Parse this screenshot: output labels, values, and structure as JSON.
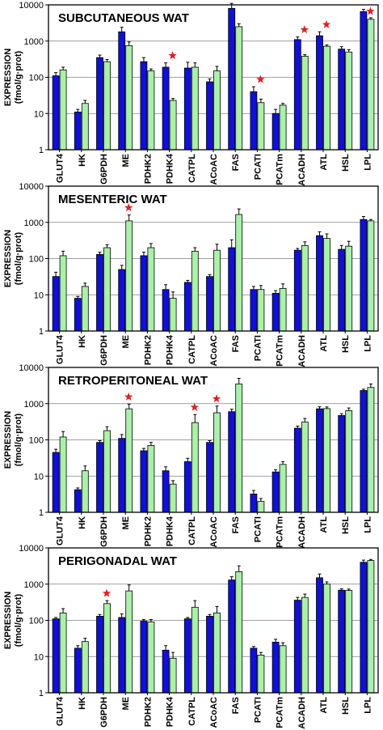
{
  "colors": {
    "series_a": "#1010d8",
    "series_b": "#aaf0aa",
    "star": "#e02020",
    "frame": "#000000",
    "grid": "#808080"
  },
  "y_axis": {
    "label_line1": "EXPRESSION",
    "label_line2": "(fmol/g·prot)",
    "tick_labels": [
      "1",
      "10",
      "100",
      "1000",
      "10000"
    ]
  },
  "chart_data": [
    {
      "type": "bar",
      "title": "SUBCUTANEOUS WAT",
      "yscale": "log",
      "ylim": [
        1,
        10000
      ],
      "grid": true,
      "categories": [
        "GLUT4",
        "HK",
        "G6PDH",
        "ME",
        "PDHK2",
        "PDHK4",
        "CATPL",
        "ACoAC",
        "FAS",
        "PCATI",
        "PCATm",
        "ACADH",
        "ATL",
        "HSL",
        "LPL"
      ],
      "series": [
        {
          "values": [
            110,
            11,
            350,
            1800,
            270,
            190,
            180,
            75,
            8000,
            40,
            10,
            1100,
            1400,
            600,
            6500
          ],
          "errors": [
            25,
            2,
            60,
            600,
            80,
            60,
            80,
            15,
            3000,
            15,
            3,
            200,
            400,
            100,
            1000
          ]
        },
        {
          "values": [
            160,
            19,
            270,
            750,
            150,
            23,
            190,
            150,
            2500,
            20,
            17,
            380,
            720,
            500,
            4000
          ],
          "errors": [
            30,
            4,
            40,
            200,
            20,
            3,
            60,
            50,
            500,
            5,
            2,
            40,
            60,
            80,
            400
          ]
        }
      ],
      "significant": [
        "PDHK4",
        "PCATI",
        "ACADH",
        "ATL",
        "LPL"
      ]
    },
    {
      "type": "bar",
      "title": "MESENTERIC WAT",
      "yscale": "log",
      "ylim": [
        1,
        10000
      ],
      "grid": true,
      "categories": [
        "GLUT4",
        "HK",
        "G6PDH",
        "ME",
        "PDHK2",
        "PDHK4",
        "CATPL",
        "ACoAC",
        "FAS",
        "PCATI",
        "PCATm",
        "ACADH",
        "ATL",
        "HSL",
        "LPL"
      ],
      "series": [
        {
          "values": [
            32,
            8,
            130,
            50,
            120,
            14,
            22,
            32,
            200,
            14,
            11,
            170,
            430,
            180,
            1200
          ],
          "errors": [
            10,
            1,
            20,
            15,
            30,
            5,
            3,
            4,
            130,
            3,
            2,
            20,
            120,
            50,
            250
          ]
        },
        {
          "values": [
            120,
            17,
            200,
            1100,
            200,
            8,
            160,
            170,
            1650,
            14,
            15,
            230,
            360,
            220,
            1100
          ],
          "errors": [
            40,
            4,
            40,
            500,
            60,
            4,
            40,
            80,
            700,
            4,
            5,
            60,
            120,
            80,
            100
          ]
        }
      ],
      "significant": [
        "ME"
      ]
    },
    {
      "type": "bar",
      "title": "RETROPERITONEAL WAT",
      "yscale": "log",
      "ylim": [
        1,
        10000
      ],
      "grid": true,
      "categories": [
        "GLUT4",
        "HK",
        "G6PDH",
        "ME",
        "PDHK2",
        "PDHK4",
        "CATPL",
        "ACoAC",
        "FAS",
        "PCATI",
        "PCATm",
        "ACADH",
        "ATL",
        "HSL",
        "LPL"
      ],
      "series": [
        {
          "values": [
            45,
            4.2,
            85,
            110,
            50,
            14,
            25,
            85,
            600,
            3.2,
            13,
            210,
            720,
            470,
            2300
          ],
          "errors": [
            10,
            0.5,
            10,
            30,
            8,
            4,
            6,
            10,
            100,
            0.8,
            2,
            30,
            100,
            60,
            200
          ]
        },
        {
          "values": [
            120,
            14,
            180,
            720,
            70,
            6,
            300,
            560,
            3500,
            2,
            21,
            310,
            730,
            640,
            2800
          ],
          "errors": [
            50,
            5,
            50,
            250,
            15,
            1.5,
            200,
            300,
            1500,
            0.4,
            4,
            80,
            80,
            120,
            700
          ]
        }
      ],
      "significant": [
        "ME",
        "CATPL",
        "ACoAC"
      ]
    },
    {
      "type": "bar",
      "title": "PERIGONADAL WAT",
      "yscale": "log",
      "ylim": [
        1,
        10000
      ],
      "grid": true,
      "categories": [
        "GLUT4",
        "HK",
        "G6PDH",
        "ME",
        "PDHK2",
        "PDHK4",
        "CATPL",
        "ACoAC",
        "FAS",
        "PCATI",
        "PCATm",
        "ACADH",
        "ATL",
        "HSL",
        "LPL"
      ],
      "series": [
        {
          "values": [
            110,
            17,
            130,
            120,
            95,
            15,
            110,
            130,
            1300,
            17,
            25,
            360,
            1500,
            680,
            4000
          ],
          "errors": [
            10,
            3,
            15,
            30,
            10,
            5,
            10,
            15,
            300,
            2,
            5,
            70,
            400,
            60,
            600
          ]
        },
        {
          "values": [
            160,
            26,
            290,
            650,
            90,
            9,
            230,
            160,
            2200,
            11,
            20,
            430,
            1000,
            670,
            4500
          ],
          "errors": [
            50,
            6,
            60,
            300,
            15,
            4,
            120,
            80,
            1000,
            2,
            4,
            100,
            150,
            60,
            300
          ]
        }
      ],
      "significant": [
        "G6PDH"
      ]
    }
  ]
}
